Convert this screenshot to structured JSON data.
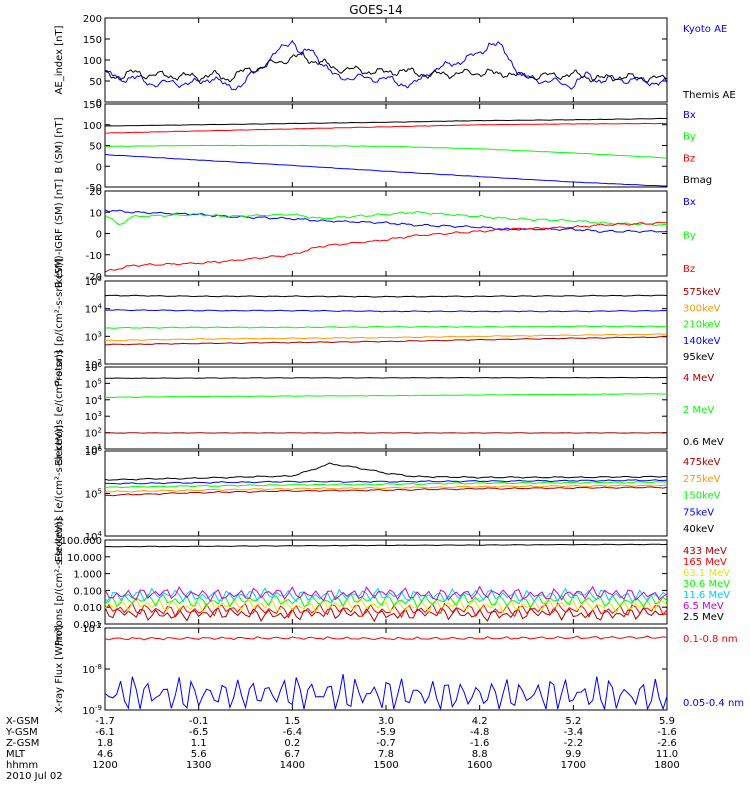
{
  "title": "GOES-14",
  "colors": {
    "black": "#000000",
    "blue": "#0000ff",
    "red": "#ff0000",
    "green": "#00ff00",
    "orange": "#ff9900",
    "dark_red": "#aa0000",
    "yellow": "#e6e600",
    "cyan": "#00ccff",
    "magenta": "#cc00cc"
  },
  "chart_data": [
    {
      "type": "line",
      "ylabel": "AE_index [nT]",
      "ylim": [
        0,
        200
      ],
      "yticks": [
        "200",
        "150",
        "100",
        "50",
        "0"
      ],
      "series": [
        {
          "name": "Kyoto AE",
          "color": "#0000ff",
          "x": [
            1200,
            1215,
            1230,
            1245,
            1300,
            1315,
            1330,
            1345,
            1400,
            1410,
            1420,
            1430,
            1445,
            1500,
            1515,
            1530,
            1545,
            1600,
            1610,
            1620,
            1630,
            1645,
            1700,
            1715,
            1730,
            1745,
            1800
          ],
          "values": [
            70,
            55,
            60,
            45,
            45,
            60,
            35,
            40,
            150,
            110,
            125,
            100,
            60,
            55,
            45,
            40,
            70,
            115,
            140,
            135,
            110,
            60,
            40,
            65,
            50,
            55,
            45
          ]
        },
        {
          "name": "Themis AE",
          "color": "#000000",
          "x": [
            1200,
            1215,
            1230,
            1245,
            1300,
            1315,
            1330,
            1345,
            1400,
            1410,
            1420,
            1430,
            1445,
            1500,
            1515,
            1530,
            1545,
            1600,
            1610,
            1620,
            1630,
            1645,
            1700,
            1715,
            1730,
            1745,
            1800
          ],
          "values": [
            65,
            60,
            70,
            65,
            60,
            65,
            55,
            70,
            105,
            110,
            100,
            95,
            80,
            70,
            75,
            70,
            65,
            70,
            70,
            65,
            70,
            60,
            65,
            60,
            55,
            60,
            55
          ]
        }
      ]
    },
    {
      "type": "line",
      "ylabel": "B (SM) [nT]",
      "ylim": [
        -50,
        150
      ],
      "yticks": [
        "150",
        "100",
        "50",
        "0",
        "-50"
      ],
      "series": [
        {
          "name": "Bx",
          "color": "#0000ff",
          "x": [
            1200,
            1300,
            1400,
            1500,
            1600,
            1700,
            1800
          ],
          "values": [
            28,
            15,
            2,
            -12,
            -25,
            -38,
            -48
          ]
        },
        {
          "name": "By",
          "color": "#00ff00",
          "x": [
            1200,
            1300,
            1400,
            1500,
            1600,
            1700,
            1800
          ],
          "values": [
            48,
            50,
            50,
            48,
            42,
            32,
            20
          ]
        },
        {
          "name": "Bz",
          "color": "#ff0000",
          "x": [
            1200,
            1300,
            1400,
            1500,
            1600,
            1700,
            1800
          ],
          "values": [
            80,
            85,
            90,
            95,
            100,
            102,
            103
          ]
        },
        {
          "name": "Bmag",
          "color": "#000000",
          "x": [
            1200,
            1300,
            1400,
            1500,
            1600,
            1700,
            1800
          ],
          "values": [
            97,
            100,
            103,
            106,
            110,
            112,
            115
          ]
        }
      ]
    },
    {
      "type": "line",
      "ylabel": "B (SM)-IGRF (SM) [nT]",
      "ylim": [
        -20,
        20
      ],
      "yticks": [
        "20",
        "10",
        "0",
        "-10",
        "-20"
      ],
      "series": [
        {
          "name": "Bx",
          "color": "#0000ff",
          "x": [
            1200,
            1230,
            1300,
            1330,
            1400,
            1430,
            1500,
            1530,
            1600,
            1630,
            1700,
            1730,
            1800
          ],
          "values": [
            11,
            10,
            9,
            8,
            7,
            6,
            5,
            4,
            3,
            2,
            2,
            1,
            1
          ]
        },
        {
          "name": "By",
          "color": "#00ff00",
          "x": [
            1200,
            1215,
            1230,
            1300,
            1330,
            1400,
            1430,
            1500,
            1530,
            1600,
            1630,
            1700,
            1730,
            1800
          ],
          "values": [
            9,
            4,
            8,
            9,
            8,
            9,
            7,
            9,
            10,
            8,
            7,
            6,
            5,
            4
          ]
        },
        {
          "name": "Bz",
          "color": "#ff0000",
          "x": [
            1200,
            1230,
            1300,
            1330,
            1400,
            1430,
            1500,
            1530,
            1600,
            1630,
            1700,
            1730,
            1800
          ],
          "values": [
            -18,
            -15,
            -14,
            -13,
            -10,
            -6,
            -3,
            -1,
            1,
            2,
            3,
            4,
            5
          ]
        }
      ]
    },
    {
      "type": "line",
      "ylabel": "Protons [p/(cm²-s-sr-keV)]",
      "scale": "log",
      "ylim": [
        100,
        100000
      ],
      "yticks": [
        "10^5",
        "10^4",
        "10^3",
        "10^2"
      ],
      "series": [
        {
          "name": "575keV",
          "color": "#aa0000",
          "x": [
            1200,
            1300,
            1400,
            1500,
            1600,
            1700,
            1800
          ],
          "values": [
            500,
            550,
            600,
            650,
            750,
            850,
            950
          ]
        },
        {
          "name": "300keV",
          "color": "#ff9900",
          "x": [
            1200,
            1300,
            1400,
            1500,
            1600,
            1700,
            1800
          ],
          "values": [
            700,
            800,
            850,
            900,
            1000,
            1100,
            1200
          ]
        },
        {
          "name": "210keV",
          "color": "#00ff00",
          "x": [
            1200,
            1300,
            1400,
            1500,
            1600,
            1700,
            1800
          ],
          "values": [
            2000,
            2100,
            2100,
            2200,
            2200,
            2300,
            2300
          ]
        },
        {
          "name": "140keV",
          "color": "#0000ff",
          "x": [
            1200,
            1300,
            1400,
            1500,
            1600,
            1700,
            1800
          ],
          "values": [
            9000,
            8500,
            8500,
            8000,
            8000,
            8000,
            8500
          ]
        },
        {
          "name": "95keV",
          "color": "#000000",
          "x": [
            1200,
            1300,
            1400,
            1500,
            1600,
            1700,
            1800
          ],
          "values": [
            30000,
            28000,
            28000,
            27000,
            28000,
            29000,
            30000
          ]
        }
      ]
    },
    {
      "type": "line",
      "ylabel": "Electrons [e/(cm²-s-sr)]",
      "scale": "log",
      "ylim": [
        1,
        1000000
      ],
      "yticks": [
        "10^6",
        "10^5",
        "10^4",
        "10^3",
        "10^2",
        "10^1"
      ],
      "series": [
        {
          "name": "4 MeV",
          "color": "#aa0000",
          "x": [
            1200,
            1300,
            1400,
            1500,
            1600,
            1700,
            1800
          ],
          "values": [
            15,
            15,
            15,
            15,
            15,
            15,
            15
          ]
        },
        {
          "name": "2 MeV",
          "color": "#00ff00",
          "x": [
            1200,
            1300,
            1400,
            1500,
            1600,
            1700,
            1800
          ],
          "values": [
            6000,
            7000,
            7500,
            8000,
            9000,
            10000,
            11000
          ]
        },
        {
          "name": "0.6 MeV",
          "color": "#000000",
          "x": [
            1200,
            1300,
            1400,
            1500,
            1600,
            1700,
            1800
          ],
          "values": [
            150000,
            155000,
            160000,
            160000,
            165000,
            165000,
            170000
          ]
        }
      ]
    },
    {
      "type": "line",
      "ylabel": "Electrons [e/(cm²-s-sr-keV)]",
      "scale": "log",
      "ylim": [
        10000,
        1000000
      ],
      "yticks": [
        "10^6",
        "10^5",
        "10^4"
      ],
      "series": [
        {
          "name": "475keV",
          "color": "#aa0000",
          "x": [
            1200,
            1300,
            1400,
            1500,
            1600,
            1700,
            1800
          ],
          "values": [
            90000,
            105000,
            115000,
            120000,
            130000,
            135000,
            140000
          ]
        },
        {
          "name": "275keV",
          "color": "#ff9900",
          "x": [
            1200,
            1300,
            1400,
            1500,
            1600,
            1700,
            1800
          ],
          "values": [
            110000,
            120000,
            130000,
            135000,
            145000,
            150000,
            155000
          ]
        },
        {
          "name": "150keV",
          "color": "#00ff00",
          "x": [
            1200,
            1300,
            1400,
            1500,
            1600,
            1700,
            1800
          ],
          "values": [
            140000,
            150000,
            160000,
            165000,
            175000,
            180000,
            185000
          ]
        },
        {
          "name": "75keV",
          "color": "#0000ff",
          "x": [
            1200,
            1300,
            1400,
            1500,
            1600,
            1700,
            1800
          ],
          "values": [
            170000,
            180000,
            190000,
            190000,
            195000,
            200000,
            205000
          ]
        },
        {
          "name": "40keV",
          "color": "#000000",
          "x": [
            1200,
            1300,
            1400,
            1420,
            1440,
            1500,
            1530,
            1600,
            1700,
            1800
          ],
          "values": [
            210000,
            230000,
            260000,
            350000,
            500000,
            300000,
            250000,
            240000,
            240000,
            250000
          ]
        }
      ]
    },
    {
      "type": "line",
      "ylabel": "Protons [p/(cm²-s-sr-keV)]",
      "scale": "log",
      "ylim": [
        0.001,
        100
      ],
      "yticks": [
        "100.000",
        "10.000",
        "1.000",
        "0.100",
        "0.010",
        "0.001"
      ],
      "series": [
        {
          "name": "433 MeV",
          "color": "#aa0000",
          "x": [
            1200,
            1300,
            1400,
            1500,
            1600,
            1700,
            1800
          ],
          "values": [
            0.004,
            0.004,
            0.004,
            0.004,
            0.004,
            0.004,
            0.004
          ]
        },
        {
          "name": "165 MeV",
          "color": "#ff0000",
          "x": [
            1200,
            1300,
            1400,
            1500,
            1600,
            1700,
            1800
          ],
          "values": [
            0.007,
            0.007,
            0.007,
            0.007,
            0.007,
            0.007,
            0.007
          ]
        },
        {
          "name": "63.1 MeV",
          "color": "#e6e600",
          "x": [
            1200,
            1300,
            1400,
            1500,
            1600,
            1700,
            1800
          ],
          "values": [
            0.013,
            0.013,
            0.013,
            0.013,
            0.013,
            0.013,
            0.013
          ]
        },
        {
          "name": "30.6 MeV",
          "color": "#00ff00",
          "x": [
            1200,
            1300,
            1400,
            1500,
            1600,
            1700,
            1800
          ],
          "values": [
            0.025,
            0.025,
            0.025,
            0.025,
            0.025,
            0.025,
            0.025
          ]
        },
        {
          "name": "11.6 MeV",
          "color": "#00ccff",
          "x": [
            1200,
            1300,
            1400,
            1500,
            1600,
            1700,
            1800
          ],
          "values": [
            0.05,
            0.05,
            0.05,
            0.05,
            0.05,
            0.05,
            0.05
          ]
        },
        {
          "name": "6.5 MeV",
          "color": "#cc00cc",
          "x": [
            1200,
            1300,
            1400,
            1500,
            1600,
            1700,
            1800
          ],
          "values": [
            0.06,
            0.06,
            0.06,
            0.06,
            0.06,
            0.06,
            0.06
          ]
        },
        {
          "name": "2.5 MeV",
          "color": "#000000",
          "x": [
            1200,
            1300,
            1400,
            1500,
            1600,
            1700,
            1800
          ],
          "values": [
            40,
            42,
            45,
            48,
            50,
            53,
            55
          ]
        }
      ]
    },
    {
      "type": "line",
      "ylabel": "X-ray Flux [W/m²]",
      "scale": "log",
      "ylim": [
        1e-09,
        1e-07
      ],
      "yticks": [
        "10^-7",
        "10^-8",
        "10^-9"
      ],
      "series": [
        {
          "name": "0.1-0.8 nm",
          "color": "#ff0000",
          "x": [
            1200,
            1300,
            1400,
            1500,
            1600,
            1700,
            1800
          ],
          "values": [
            5.5e-08,
            5.6e-08,
            5.7e-08,
            5.5e-08,
            5.6e-08,
            5.8e-08,
            5.9e-08
          ]
        },
        {
          "name": "0.05-0.4 nm",
          "color": "#0000ff",
          "x": [
            1200,
            1300,
            1400,
            1500,
            1600,
            1700,
            1800
          ],
          "values": [
            2.5e-09,
            2.3e-09,
            2.6e-09,
            2.4e-09,
            2.3e-09,
            2.4e-09,
            2.2e-09
          ]
        }
      ]
    }
  ],
  "x_axis": {
    "rows": [
      {
        "label": "X-GSM",
        "values": [
          "-1.7",
          "-0.1",
          "1.5",
          "3.0",
          "4.2",
          "5.2",
          "5.9"
        ]
      },
      {
        "label": "Y-GSM",
        "values": [
          "-6.1",
          "-6.5",
          "-6.4",
          "-5.9",
          "-4.8",
          "-3.4",
          "-1.6"
        ]
      },
      {
        "label": "Z-GSM",
        "values": [
          "1.8",
          "1.1",
          "0.2",
          "-0.7",
          "-1.6",
          "-2.2",
          "-2.6"
        ]
      },
      {
        "label": "MLT",
        "values": [
          "4.6",
          "5.6",
          "6.7",
          "7.8",
          "8.8",
          "9.9",
          "11.0"
        ]
      },
      {
        "label": "hhmm",
        "values": [
          "1200",
          "1300",
          "1400",
          "1500",
          "1600",
          "1700",
          "1800"
        ]
      }
    ],
    "date": "2010 Jul 02"
  }
}
